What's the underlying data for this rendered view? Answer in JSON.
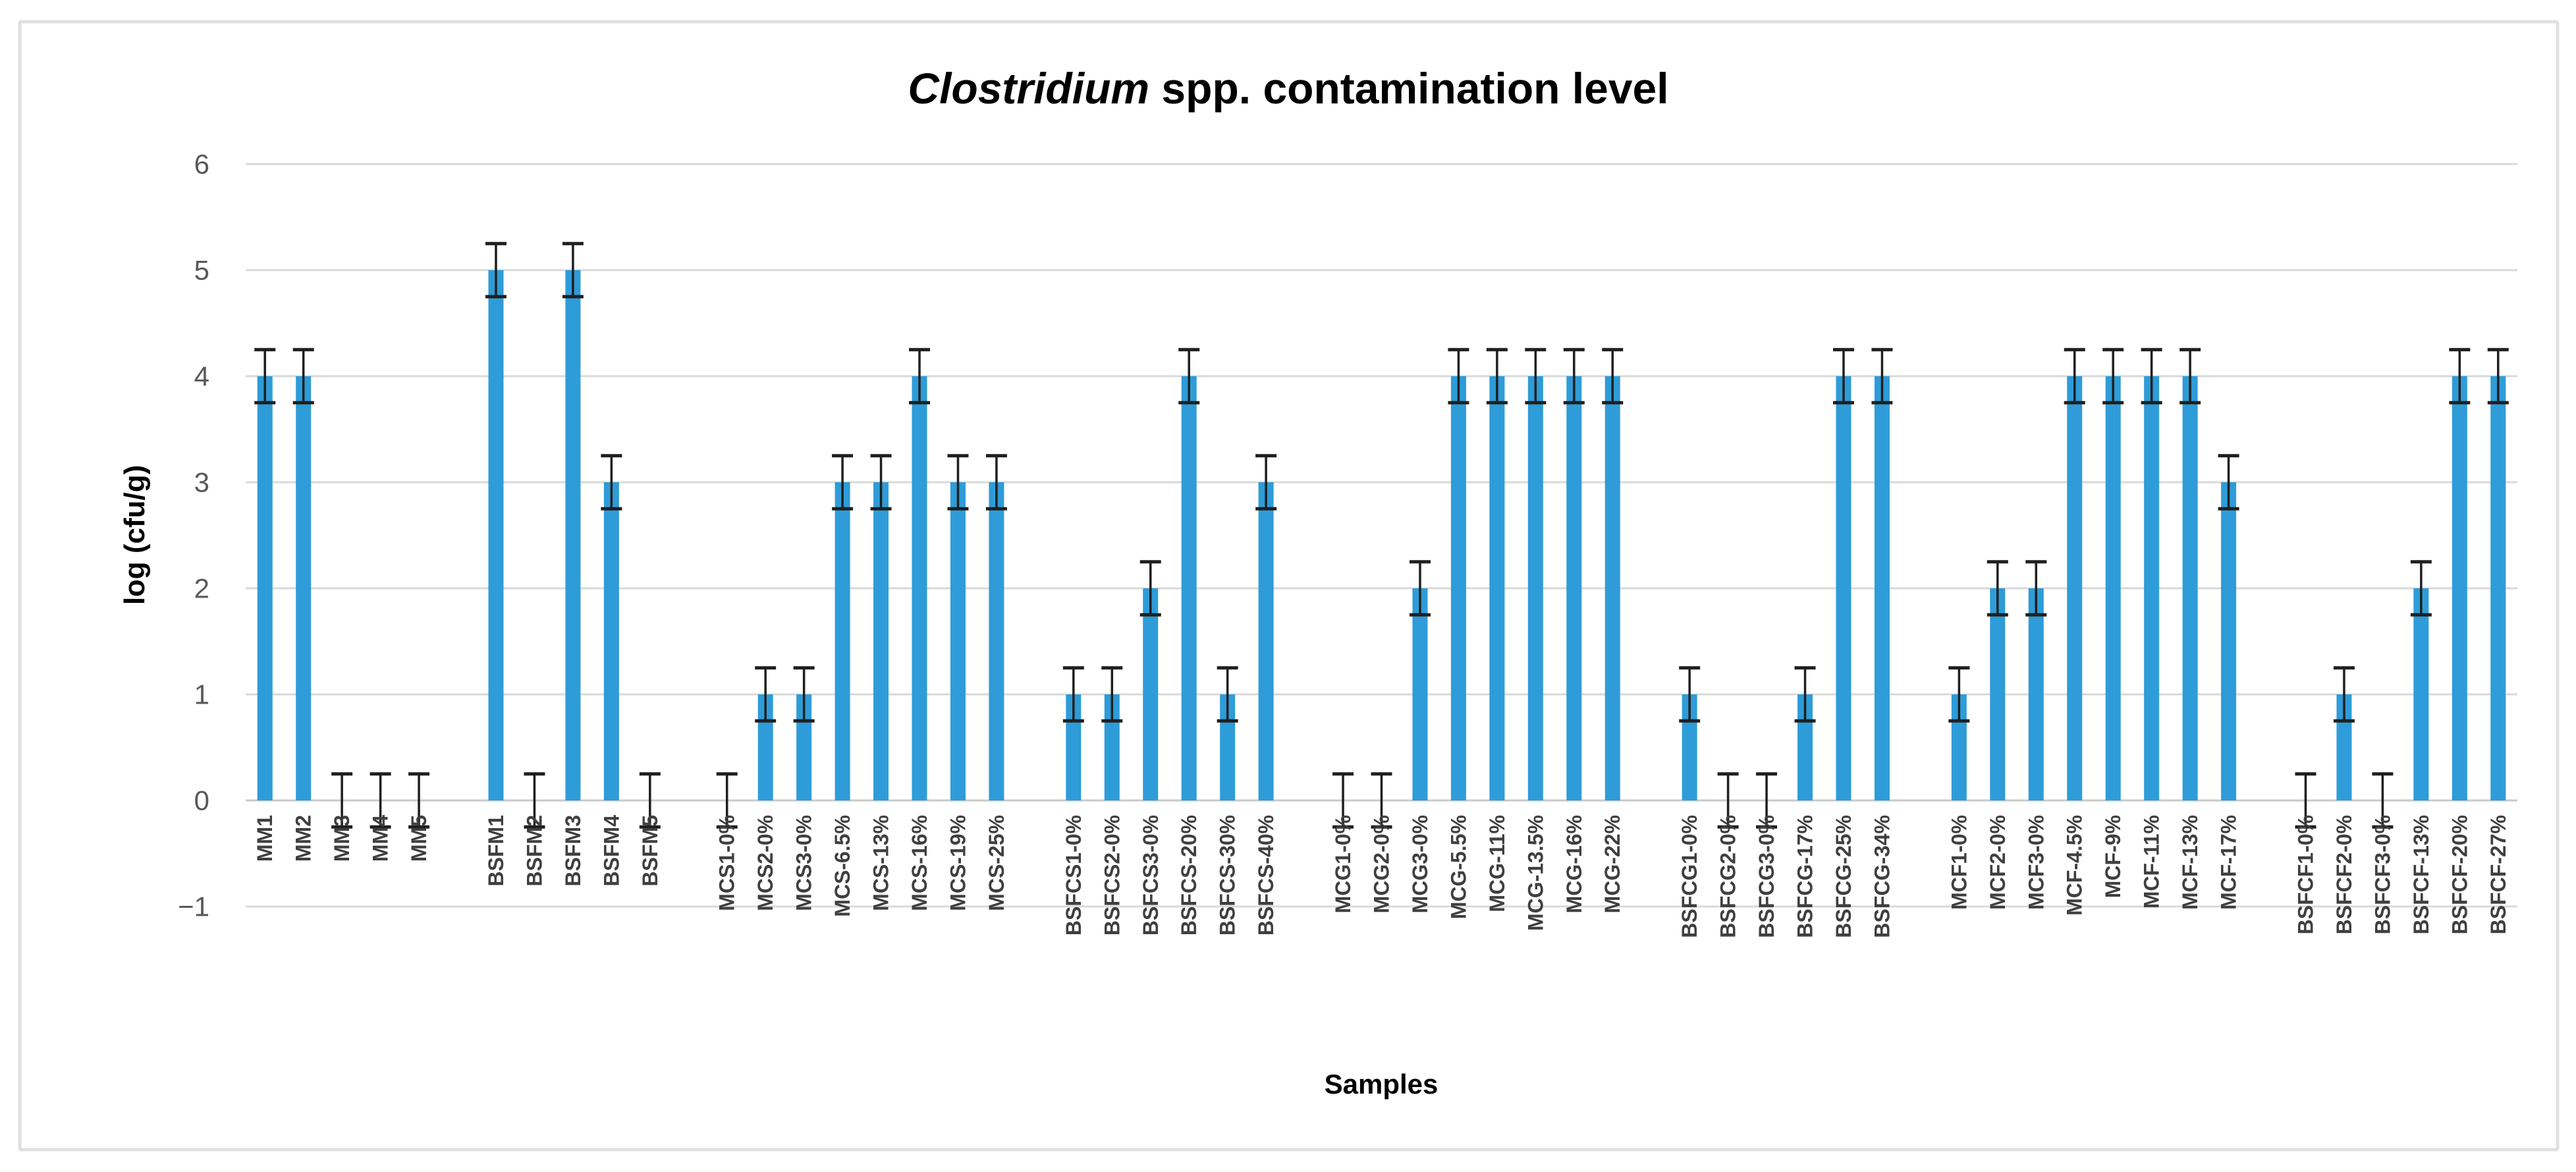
{
  "chart_data": {
    "type": "bar",
    "title": "Clostridium spp. contamination level",
    "title_italic_part": "Clostridium",
    "title_rest_part": " spp. contamination level",
    "xlabel": "Samples",
    "ylabel": "log (cfu/g)",
    "ylim": [
      -1,
      6
    ],
    "yticks": [
      6,
      5,
      4,
      3,
      2,
      1,
      0,
      -1
    ],
    "ytick_labels": [
      "6",
      "5",
      "4",
      "3",
      "2",
      "1",
      "0",
      "−1"
    ],
    "grid": true,
    "legend": "none",
    "error_bar_plus_minus": 0.25,
    "bar_color": "#2E9CD8",
    "grid_color": "#D9D9D9",
    "baseline_color": "#C9C9C9",
    "error_bar_color": "#1F1F1F",
    "ytick_color": "#595959",
    "xtick_color": "#3F3F3F",
    "border_color": "#E0E0E0",
    "groups": [
      {
        "name": "MM",
        "categories": [
          "MM1",
          "MM2",
          "MM3",
          "MM4",
          "MM5"
        ],
        "values": [
          4,
          4,
          0,
          0,
          0
        ]
      },
      {
        "name": "BSFM",
        "categories": [
          "BSFM1",
          "BSFM2",
          "BSFM3",
          "BSFM4",
          "BSFM5"
        ],
        "values": [
          5,
          0,
          5,
          3,
          0
        ]
      },
      {
        "name": "MCS",
        "categories": [
          "MCS1-0%",
          "MCS2-0%",
          "MCS3-0%",
          "MCS-6.5%",
          "MCS-13%",
          "MCS-16%",
          "MCS-19%",
          "MCS-25%"
        ],
        "values": [
          0,
          1,
          1,
          3,
          3,
          4,
          3,
          3
        ]
      },
      {
        "name": "BSFCS",
        "categories": [
          "BSFCS1-0%",
          "BSFCS2-0%",
          "BSFCS3-0%",
          "BSFCS-20%",
          "BSFCS-30%",
          "BSFCS-40%"
        ],
        "values": [
          1,
          1,
          2,
          4,
          1,
          3
        ]
      },
      {
        "name": "MCG",
        "categories": [
          "MCG1-0%",
          "MCG2-0%",
          "MCG3-0%",
          "MCG-5.5%",
          "MCG-11%",
          "MCG-13.5%",
          "MCG-16%",
          "MCG-22%"
        ],
        "values": [
          0,
          0,
          2,
          4,
          4,
          4,
          4,
          4
        ]
      },
      {
        "name": "BSFCG",
        "categories": [
          "BSFCG1-0%",
          "BSFCG2-0%",
          "BSFCG3-0%",
          "BSFCG-17%",
          "BSFCG-25%",
          "BSFCG-34%"
        ],
        "values": [
          1,
          0,
          0,
          1,
          4,
          4
        ]
      },
      {
        "name": "MCF",
        "categories": [
          "MCF1-0%",
          "MCF2-0%",
          "MCF3-0%",
          "MCF-4.5%",
          "MCF-9%",
          "MCF-11%",
          "MCF-13%",
          "MCF-17%"
        ],
        "values": [
          1,
          2,
          2,
          4,
          4,
          4,
          4,
          3
        ]
      },
      {
        "name": "BSFCF",
        "categories": [
          "BSFCF1-0%",
          "BSFCF2-0%",
          "BSFCF3-0%",
          "BSFCF-13%",
          "BSFCF-20%",
          "BSFCF-27%"
        ],
        "values": [
          0,
          1,
          0,
          2,
          4,
          4
        ]
      }
    ]
  }
}
